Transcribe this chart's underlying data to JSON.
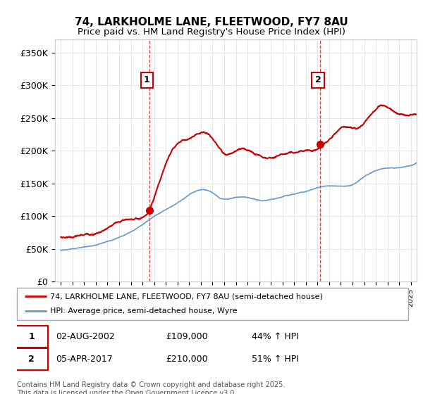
{
  "title1": "74, LARKHOLME LANE, FLEETWOOD, FY7 8AU",
  "title2": "Price paid vs. HM Land Registry's House Price Index (HPI)",
  "legend_line1": "74, LARKHOLME LANE, FLEETWOOD, FY7 8AU (semi-detached house)",
  "legend_line2": "HPI: Average price, semi-detached house, Wyre",
  "annotation1": {
    "label": "1",
    "date": "02-AUG-2002",
    "price": "£109,000",
    "hpi": "44% ↑ HPI"
  },
  "annotation2": {
    "label": "2",
    "date": "05-APR-2017",
    "price": "£210,000",
    "hpi": "51% ↑ HPI"
  },
  "footer": "Contains HM Land Registry data © Crown copyright and database right 2025.\nThis data is licensed under the Open Government Licence v3.0.",
  "price_color": "#cc0000",
  "hpi_color": "#6699cc",
  "vline_color": "#cc0000",
  "ylim": [
    0,
    370000
  ],
  "yticks": [
    0,
    50000,
    100000,
    150000,
    200000,
    250000,
    300000,
    350000
  ],
  "ytick_labels": [
    "£0",
    "£50K",
    "£100K",
    "£150K",
    "£200K",
    "£250K",
    "£300K",
    "£350K"
  ],
  "purchase1_x": 2002.58,
  "purchase1_y": 109000,
  "purchase2_x": 2017.25,
  "purchase2_y": 210000,
  "xlim": [
    1994.5,
    2025.5
  ],
  "hpi_points_x": [
    1995.0,
    1997.0,
    1999.0,
    2001.0,
    2003.0,
    2005.0,
    2007.5,
    2009.0,
    2010.0,
    2012.0,
    2014.0,
    2016.0,
    2018.0,
    2020.0,
    2021.5,
    2023.0,
    2025.5
  ],
  "hpi_points_y": [
    48000,
    52000,
    60000,
    75000,
    98000,
    118000,
    138000,
    125000,
    128000,
    122000,
    128000,
    138000,
    148000,
    150000,
    168000,
    175000,
    182000
  ],
  "price_points_x": [
    1995.0,
    1997.0,
    1999.0,
    2001.0,
    2002.58,
    2004.5,
    2006.0,
    2007.5,
    2009.0,
    2010.5,
    2012.0,
    2013.0,
    2014.0,
    2015.0,
    2016.0,
    2017.25,
    2018.5,
    2019.5,
    2020.5,
    2021.5,
    2022.5,
    2023.5,
    2024.5,
    2025.5
  ],
  "price_points_y": [
    68000,
    72000,
    82000,
    95000,
    109000,
    195000,
    215000,
    225000,
    195000,
    200000,
    190000,
    188000,
    195000,
    200000,
    205000,
    210000,
    230000,
    240000,
    235000,
    255000,
    270000,
    265000,
    258000,
    255000
  ]
}
